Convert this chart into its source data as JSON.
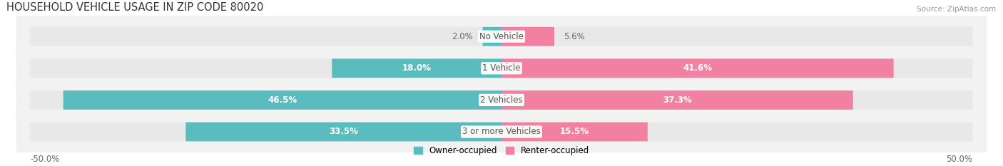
{
  "title": "HOUSEHOLD VEHICLE USAGE IN ZIP CODE 80020",
  "source": "Source: ZipAtlas.com",
  "categories": [
    "No Vehicle",
    "1 Vehicle",
    "2 Vehicles",
    "3 or more Vehicles"
  ],
  "owner_values": [
    2.0,
    18.0,
    46.5,
    33.5
  ],
  "renter_values": [
    5.6,
    41.6,
    37.3,
    15.5
  ],
  "owner_color": "#5bbcbf",
  "renter_color": "#f280a1",
  "bar_bg_color": "#e8e8e8",
  "row_bg_color": "#f2f2f2",
  "axis_limit": 50.0,
  "owner_label": "Owner-occupied",
  "renter_label": "Renter-occupied",
  "title_fontsize": 10.5,
  "label_fontsize": 8.5,
  "tick_fontsize": 8.5,
  "source_fontsize": 7.5
}
